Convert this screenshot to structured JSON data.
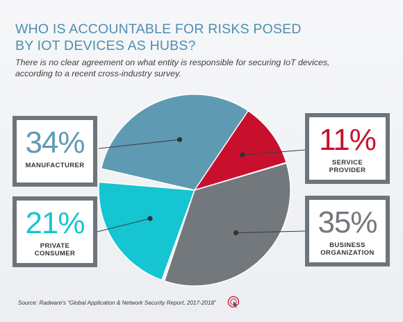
{
  "title_line1": "WHO IS ACCOUNTABLE FOR RISKS POSED",
  "title_line2": "BY IOT DEVICES AS HUBS?",
  "subtitle_line1": "There is no clear agreement on what entity is responsible for securing IoT devices,",
  "subtitle_line2": "according to a recent cross-industry survey.",
  "source": "Source: Radware's “Global Application & Network Security Report, 2017-2018”",
  "source_icon": "cursor-click-icon",
  "chart_data": {
    "type": "pie",
    "title": "WHO IS ACCOUNTABLE FOR RISKS POSED BY IOT DEVICES AS HUBS?",
    "slices": [
      {
        "pct_label": "34%",
        "label_line1": "MANUFACTURER",
        "label_line2": "",
        "value": 34,
        "color": "#5f9ab3",
        "pct_color": "#5f9ab3"
      },
      {
        "pct_label": "11%",
        "label_line1": "SERVICE",
        "label_line2": "PROVIDER",
        "value": 11,
        "color": "#c8102e",
        "pct_color": "#c8102e"
      },
      {
        "pct_label": "35%",
        "label_line1": "BUSINESS",
        "label_line2": "ORGANIZATION",
        "value": 35,
        "color": "#73787d",
        "pct_color": "#73787d"
      },
      {
        "pct_label": "21%",
        "label_line1": "PRIVATE",
        "label_line2": "CONSUMER",
        "value": 21,
        "color": "#15c5d2",
        "pct_color": "#15c5d2"
      }
    ]
  }
}
